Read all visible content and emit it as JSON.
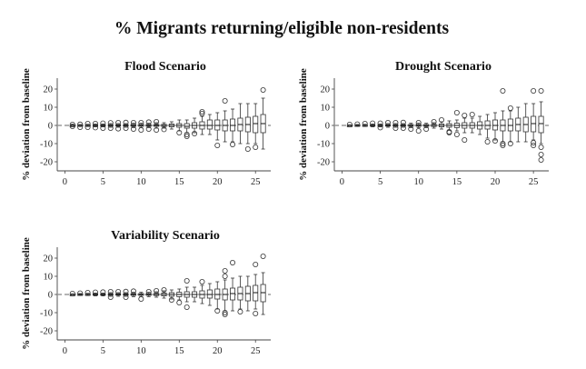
{
  "title": "% Migrants returning/eligible non-residents",
  "chart_data": [
    {
      "type": "boxplot",
      "title": "Flood Scenario",
      "ylabel": "% deviation from baseline",
      "xlabel": "",
      "xlim": [
        -1,
        27
      ],
      "ylim": [
        -25,
        26
      ],
      "x_ticks": [
        0,
        5,
        10,
        15,
        20,
        25
      ],
      "y_ticks": [
        -20,
        -10,
        0,
        10,
        20
      ],
      "boxes": [
        {
          "x": 1,
          "q1": 0,
          "med": 0,
          "q3": 0,
          "lo": -0.3,
          "hi": 0.3,
          "outliers": [
            -0.5,
            0.5
          ]
        },
        {
          "x": 2,
          "q1": -0.2,
          "med": 0,
          "q3": 0.2,
          "lo": -0.5,
          "hi": 0.5,
          "outliers": [
            -1,
            0.6
          ]
        },
        {
          "x": 3,
          "q1": -0.2,
          "med": 0,
          "q3": 0.2,
          "lo": -0.6,
          "hi": 0.6,
          "outliers": [
            -1,
            1
          ]
        },
        {
          "x": 4,
          "q1": -0.3,
          "med": 0,
          "q3": 0.3,
          "lo": -0.8,
          "hi": 0.8,
          "outliers": [
            -1.2,
            1
          ]
        },
        {
          "x": 5,
          "q1": -0.3,
          "med": 0,
          "q3": 0.3,
          "lo": -0.8,
          "hi": 0.8,
          "outliers": [
            -1.5,
            1.2
          ]
        },
        {
          "x": 6,
          "q1": -0.4,
          "med": 0,
          "q3": 0.4,
          "lo": -1,
          "hi": 1,
          "outliers": [
            -1.5,
            1.4
          ]
        },
        {
          "x": 7,
          "q1": -0.4,
          "med": 0,
          "q3": 0.4,
          "lo": -1,
          "hi": 1,
          "outliers": [
            -1.8,
            1.5
          ]
        },
        {
          "x": 8,
          "q1": -0.4,
          "med": 0,
          "q3": 0.4,
          "lo": -1,
          "hi": 1,
          "outliers": [
            -1.5,
            1.6
          ]
        },
        {
          "x": 9,
          "q1": -0.5,
          "med": 0,
          "q3": 0.5,
          "lo": -1.2,
          "hi": 1.2,
          "outliers": [
            -2,
            1.5
          ]
        },
        {
          "x": 10,
          "q1": -0.5,
          "med": 0,
          "q3": 0.5,
          "lo": -1.2,
          "hi": 1.2,
          "outliers": [
            -2.5,
            1.5
          ]
        },
        {
          "x": 11,
          "q1": -0.5,
          "med": 0,
          "q3": 0.5,
          "lo": -1.2,
          "hi": 1.2,
          "outliers": [
            -2,
            1.8
          ]
        },
        {
          "x": 12,
          "q1": -0.5,
          "med": 0,
          "q3": 0.5,
          "lo": -1.5,
          "hi": 1.5,
          "outliers": [
            -2.5,
            2
          ]
        },
        {
          "x": 13,
          "q1": -0.6,
          "med": 0,
          "q3": 0.6,
          "lo": -1.5,
          "hi": 1.5,
          "outliers": [
            -2.2
          ]
        },
        {
          "x": 14,
          "q1": -0.8,
          "med": 0,
          "q3": 0.8,
          "lo": -2,
          "hi": 2,
          "outliers": []
        },
        {
          "x": 15,
          "q1": -1,
          "med": 0,
          "q3": 1,
          "lo": -3,
          "hi": 3,
          "outliers": [
            -4
          ]
        },
        {
          "x": 16,
          "q1": -1.5,
          "med": -0.5,
          "q3": 1,
          "lo": -4,
          "hi": 3,
          "outliers": [
            -5,
            -6
          ]
        },
        {
          "x": 17,
          "q1": -1.5,
          "med": 0,
          "q3": 1.5,
          "lo": -4,
          "hi": 4,
          "outliers": [
            -4.5
          ]
        },
        {
          "x": 18,
          "q1": -2,
          "med": 0,
          "q3": 2,
          "lo": -5,
          "hi": 5,
          "outliers": [
            6.5,
            7.5
          ]
        },
        {
          "x": 19,
          "q1": -2,
          "med": 0,
          "q3": 3,
          "lo": -5,
          "hi": 6,
          "outliers": []
        },
        {
          "x": 20,
          "q1": -2.5,
          "med": 0,
          "q3": 3,
          "lo": -8,
          "hi": 7,
          "outliers": [
            -11
          ]
        },
        {
          "x": 21,
          "q1": -3,
          "med": 0,
          "q3": 3,
          "lo": -9,
          "hi": 8,
          "outliers": [
            13.5
          ]
        },
        {
          "x": 22,
          "q1": -3,
          "med": 0,
          "q3": 3.5,
          "lo": -9,
          "hi": 9,
          "outliers": [
            -10.5
          ]
        },
        {
          "x": 23,
          "q1": -3,
          "med": 0.5,
          "q3": 4,
          "lo": -10,
          "hi": 12,
          "outliers": []
        },
        {
          "x": 24,
          "q1": -3.5,
          "med": 0.5,
          "q3": 4.5,
          "lo": -10,
          "hi": 12,
          "outliers": [
            -13
          ]
        },
        {
          "x": 25,
          "q1": -4,
          "med": 1,
          "q3": 5,
          "lo": -10,
          "hi": 12,
          "outliers": [
            -12
          ]
        },
        {
          "x": 26,
          "q1": -4,
          "med": 1,
          "q3": 6,
          "lo": -13,
          "hi": 15,
          "outliers": [
            19.5
          ]
        }
      ]
    },
    {
      "type": "boxplot",
      "title": "Drought Scenario",
      "ylabel": "% deviation from baseline",
      "xlabel": "",
      "xlim": [
        -1,
        27
      ],
      "ylim": [
        -25,
        26
      ],
      "x_ticks": [
        0,
        5,
        10,
        15,
        20,
        25
      ],
      "y_ticks": [
        -20,
        -10,
        0,
        10,
        20
      ],
      "boxes": [
        {
          "x": 1,
          "q1": 0,
          "med": 0,
          "q3": 0,
          "lo": -0.3,
          "hi": 0.3,
          "outliers": [
            0.5
          ]
        },
        {
          "x": 2,
          "q1": -0.2,
          "med": 0,
          "q3": 0.2,
          "lo": -0.5,
          "hi": 0.5,
          "outliers": [
            0.7
          ]
        },
        {
          "x": 3,
          "q1": -0.2,
          "med": 0,
          "q3": 0.2,
          "lo": -0.6,
          "hi": 0.6,
          "outliers": [
            1
          ]
        },
        {
          "x": 4,
          "q1": -0.3,
          "med": 0,
          "q3": 0.3,
          "lo": -0.8,
          "hi": 0.8,
          "outliers": [
            1.2
          ]
        },
        {
          "x": 5,
          "q1": -0.3,
          "med": 0,
          "q3": 0.3,
          "lo": -0.8,
          "hi": 0.8,
          "outliers": [
            -1.2,
            1.2
          ]
        },
        {
          "x": 6,
          "q1": -0.4,
          "med": 0,
          "q3": 0.4,
          "lo": -1,
          "hi": 1,
          "outliers": [
            1.5
          ]
        },
        {
          "x": 7,
          "q1": -0.4,
          "med": 0,
          "q3": 0.4,
          "lo": -1,
          "hi": 1,
          "outliers": [
            -1.5,
            1.5
          ]
        },
        {
          "x": 8,
          "q1": -0.4,
          "med": 0,
          "q3": 0.4,
          "lo": -1,
          "hi": 1,
          "outliers": [
            -1.5,
            1.6
          ]
        },
        {
          "x": 9,
          "q1": -0.5,
          "med": 0,
          "q3": 0.5,
          "lo": -1.2,
          "hi": 1.2,
          "outliers": [
            -2
          ]
        },
        {
          "x": 10,
          "q1": -0.5,
          "med": 0,
          "q3": 0.5,
          "lo": -1.2,
          "hi": 1.2,
          "outliers": [
            -3,
            1.5
          ]
        },
        {
          "x": 11,
          "q1": -0.5,
          "med": 0,
          "q3": 0.5,
          "lo": -1.2,
          "hi": 1.2,
          "outliers": [
            -2
          ]
        },
        {
          "x": 12,
          "q1": -0.6,
          "med": 0,
          "q3": 0.6,
          "lo": -1.5,
          "hi": 1.5,
          "outliers": [
            2
          ]
        },
        {
          "x": 13,
          "q1": -0.8,
          "med": 0,
          "q3": 0.8,
          "lo": -2,
          "hi": 2,
          "outliers": [
            3
          ]
        },
        {
          "x": 14,
          "q1": -1,
          "med": 0,
          "q3": 1,
          "lo": -2.5,
          "hi": 2.5,
          "outliers": [
            -3.5,
            -4
          ]
        },
        {
          "x": 15,
          "q1": -1.2,
          "med": 0,
          "q3": 1.2,
          "lo": -3,
          "hi": 3,
          "outliers": [
            -5,
            7
          ]
        },
        {
          "x": 16,
          "q1": -1.5,
          "med": 0,
          "q3": 1.5,
          "lo": -4,
          "hi": 4,
          "outliers": [
            -8,
            5.5
          ]
        },
        {
          "x": 17,
          "q1": -1.5,
          "med": 0,
          "q3": 1.5,
          "lo": -4,
          "hi": 4,
          "outliers": [
            6
          ]
        },
        {
          "x": 18,
          "q1": -2,
          "med": 0,
          "q3": 2,
          "lo": -5,
          "hi": 5,
          "outliers": []
        },
        {
          "x": 19,
          "q1": -2,
          "med": 0,
          "q3": 2.5,
          "lo": -7,
          "hi": 6,
          "outliers": [
            -9
          ]
        },
        {
          "x": 20,
          "q1": -2.5,
          "med": 0,
          "q3": 3,
          "lo": -8,
          "hi": 7,
          "outliers": [
            -8.5
          ]
        },
        {
          "x": 21,
          "q1": -3,
          "med": 0,
          "q3": 3,
          "lo": -9,
          "hi": 8,
          "outliers": [
            -10,
            -11,
            19
          ]
        },
        {
          "x": 22,
          "q1": -3,
          "med": 0,
          "q3": 3.5,
          "lo": -9,
          "hi": 8,
          "outliers": [
            -10,
            9.5
          ]
        },
        {
          "x": 23,
          "q1": -3,
          "med": 0.5,
          "q3": 4,
          "lo": -9,
          "hi": 10,
          "outliers": []
        },
        {
          "x": 24,
          "q1": -3.5,
          "med": 0.5,
          "q3": 4.5,
          "lo": -9,
          "hi": 12,
          "outliers": []
        },
        {
          "x": 25,
          "q1": -3.5,
          "med": 1,
          "q3": 5,
          "lo": -8,
          "hi": 12,
          "outliers": [
            -9.5,
            -11,
            19
          ]
        },
        {
          "x": 26,
          "q1": -4,
          "med": 1,
          "q3": 5,
          "lo": -10,
          "hi": 13,
          "outliers": [
            -12,
            -16,
            -19,
            19
          ]
        }
      ]
    },
    {
      "type": "boxplot",
      "title": "Variability Scenario",
      "ylabel": "% deviation from baseline",
      "xlabel": "",
      "xlim": [
        -1,
        27
      ],
      "ylim": [
        -25,
        26
      ],
      "x_ticks": [
        0,
        5,
        10,
        15,
        20,
        25
      ],
      "y_ticks": [
        -20,
        -10,
        0,
        10,
        20
      ],
      "boxes": [
        {
          "x": 1,
          "q1": 0,
          "med": 0,
          "q3": 0,
          "lo": -0.3,
          "hi": 0.3,
          "outliers": [
            0.5
          ]
        },
        {
          "x": 2,
          "q1": -0.2,
          "med": 0,
          "q3": 0.2,
          "lo": -0.5,
          "hi": 0.5,
          "outliers": [
            0.7
          ]
        },
        {
          "x": 3,
          "q1": -0.2,
          "med": 0,
          "q3": 0.2,
          "lo": -0.6,
          "hi": 0.6,
          "outliers": [
            1
          ]
        },
        {
          "x": 4,
          "q1": -0.3,
          "med": 0,
          "q3": 0.3,
          "lo": -0.8,
          "hi": 0.8,
          "outliers": [
            1.2
          ]
        },
        {
          "x": 5,
          "q1": -0.3,
          "med": 0,
          "q3": 0.3,
          "lo": -0.8,
          "hi": 0.8,
          "outliers": [
            1.3
          ]
        },
        {
          "x": 6,
          "q1": -0.4,
          "med": 0,
          "q3": 0.4,
          "lo": -1,
          "hi": 1,
          "outliers": [
            -1.5,
            1.5
          ]
        },
        {
          "x": 7,
          "q1": -0.4,
          "med": 0,
          "q3": 0.4,
          "lo": -1,
          "hi": 1,
          "outliers": [
            1.5
          ]
        },
        {
          "x": 8,
          "q1": -0.4,
          "med": 0,
          "q3": 0.4,
          "lo": -1,
          "hi": 1,
          "outliers": [
            -1.5,
            1.6
          ]
        },
        {
          "x": 9,
          "q1": -0.5,
          "med": 0,
          "q3": 0.5,
          "lo": -1.2,
          "hi": 1.2,
          "outliers": [
            1.8
          ]
        },
        {
          "x": 10,
          "q1": -0.5,
          "med": 0,
          "q3": 0.5,
          "lo": -1.2,
          "hi": 1.2,
          "outliers": [
            -2.5
          ]
        },
        {
          "x": 11,
          "q1": -0.5,
          "med": 0,
          "q3": 0.5,
          "lo": -1.2,
          "hi": 1.2,
          "outliers": [
            1.5
          ]
        },
        {
          "x": 12,
          "q1": -0.6,
          "med": 0,
          "q3": 0.6,
          "lo": -1.5,
          "hi": 1.5,
          "outliers": [
            2
          ]
        },
        {
          "x": 13,
          "q1": -0.8,
          "med": 0,
          "q3": 0.8,
          "lo": -2,
          "hi": 2,
          "outliers": [
            2.5
          ]
        },
        {
          "x": 14,
          "q1": -1,
          "med": 0,
          "q3": 1,
          "lo": -2.5,
          "hi": 2.5,
          "outliers": [
            -3
          ]
        },
        {
          "x": 15,
          "q1": -1.2,
          "med": 0,
          "q3": 1.2,
          "lo": -3,
          "hi": 3,
          "outliers": [
            -4.5
          ]
        },
        {
          "x": 16,
          "q1": -1.5,
          "med": 0,
          "q3": 1.5,
          "lo": -4,
          "hi": 4,
          "outliers": [
            -7,
            7.5
          ]
        },
        {
          "x": 17,
          "q1": -1.5,
          "med": 0,
          "q3": 1.5,
          "lo": -4,
          "hi": 4,
          "outliers": []
        },
        {
          "x": 18,
          "q1": -2,
          "med": 0,
          "q3": 2,
          "lo": -5,
          "hi": 5,
          "outliers": [
            7
          ]
        },
        {
          "x": 19,
          "q1": -2,
          "med": 0,
          "q3": 2.5,
          "lo": -6,
          "hi": 6,
          "outliers": []
        },
        {
          "x": 20,
          "q1": -2.5,
          "med": 0,
          "q3": 3,
          "lo": -8,
          "hi": 7,
          "outliers": [
            -9
          ]
        },
        {
          "x": 21,
          "q1": -3,
          "med": 0,
          "q3": 3,
          "lo": -9,
          "hi": 8,
          "outliers": [
            -10,
            -11,
            10,
            13
          ]
        },
        {
          "x": 22,
          "q1": -3,
          "med": 0.5,
          "q3": 3.5,
          "lo": -9,
          "hi": 9,
          "outliers": [
            17.5
          ]
        },
        {
          "x": 23,
          "q1": -3,
          "med": 0.5,
          "q3": 4,
          "lo": -8,
          "hi": 10,
          "outliers": [
            -9.5
          ]
        },
        {
          "x": 24,
          "q1": -3.5,
          "med": 0.5,
          "q3": 4.5,
          "lo": -9,
          "hi": 10,
          "outliers": []
        },
        {
          "x": 25,
          "q1": -3.5,
          "med": 1,
          "q3": 5,
          "lo": -8,
          "hi": 11,
          "outliers": [
            16.5,
            -10.5
          ]
        },
        {
          "x": 26,
          "q1": -4,
          "med": 1,
          "q3": 5.5,
          "lo": -11,
          "hi": 12,
          "outliers": [
            21
          ]
        }
      ]
    }
  ]
}
